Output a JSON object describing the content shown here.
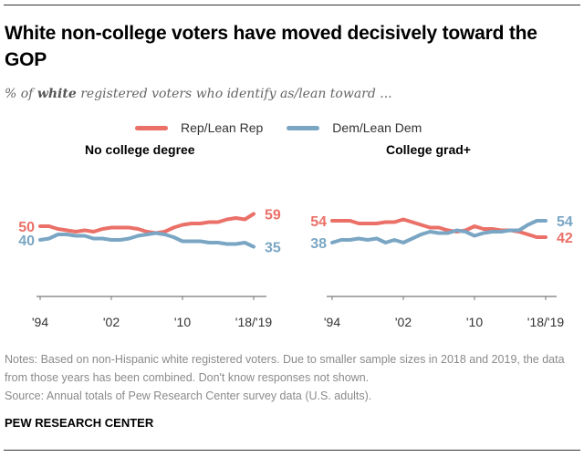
{
  "header": {
    "title": "White non-college voters have moved decisively toward the GOP",
    "subtitle_prefix": "% of ",
    "subtitle_emphasis": "white",
    "subtitle_suffix": " registered voters who identify as/lean toward ..."
  },
  "legend": [
    {
      "label": "Rep/Lean Rep",
      "color": "#ea7068"
    },
    {
      "label": "Dem/Lean Dem",
      "color": "#7aa6c4"
    }
  ],
  "panels": [
    {
      "title": "No college degree"
    },
    {
      "title": "College grad+"
    }
  ],
  "footer": {
    "notes": "Notes: Based on non-Hispanic white registered voters. Due to smaller sample sizes in 2018 and 2019, the data from those years has been combined. Don't know responses not shown.",
    "source": "Source: Annual totals of Pew Research Center survey data (U.S. adults).",
    "org": "PEW RESEARCH CENTER"
  },
  "chart_data": [
    {
      "type": "line",
      "title": "No college degree",
      "x": [
        "1994",
        "1995",
        "1996",
        "1997",
        "1998",
        "1999",
        "2000",
        "2001",
        "2002",
        "2003",
        "2004",
        "2005",
        "2006",
        "2007",
        "2008",
        "2009",
        "2010",
        "2011",
        "2012",
        "2013",
        "2014",
        "2015",
        "2016",
        "2017",
        "2018/19"
      ],
      "xticks": [
        "'94",
        "'02",
        "'10",
        "'18/'19"
      ],
      "ylim": [
        20,
        75
      ],
      "series": [
        {
          "name": "Rep/Lean Rep",
          "color": "#ea7068",
          "values": [
            50,
            50,
            48,
            47,
            46,
            47,
            46,
            48,
            49,
            49,
            49,
            48,
            46,
            45,
            46,
            49,
            51,
            52,
            52,
            53,
            53,
            55,
            56,
            55,
            59
          ],
          "start_label": "50",
          "end_label": "59"
        },
        {
          "name": "Dem/Lean Dem",
          "color": "#7aa6c4",
          "values": [
            40,
            41,
            44,
            44,
            43,
            43,
            41,
            41,
            40,
            40,
            41,
            43,
            44,
            45,
            44,
            42,
            39,
            39,
            39,
            38,
            38,
            37,
            37,
            38,
            35
          ],
          "start_label": "40",
          "end_label": "35"
        }
      ]
    },
    {
      "type": "line",
      "title": "College grad+",
      "x": [
        "1994",
        "1995",
        "1996",
        "1997",
        "1998",
        "1999",
        "2000",
        "2001",
        "2002",
        "2003",
        "2004",
        "2005",
        "2006",
        "2007",
        "2008",
        "2009",
        "2010",
        "2011",
        "2012",
        "2013",
        "2014",
        "2015",
        "2016",
        "2017",
        "2018/19"
      ],
      "xticks": [
        "'94",
        "'02",
        "'10",
        "'18/'19"
      ],
      "ylim": [
        20,
        75
      ],
      "series": [
        {
          "name": "Rep/Lean Rep",
          "color": "#ea7068",
          "values": [
            54,
            54,
            54,
            52,
            52,
            52,
            53,
            53,
            55,
            53,
            51,
            49,
            49,
            47,
            46,
            47,
            50,
            48,
            48,
            47,
            47,
            46,
            44,
            42,
            42
          ],
          "start_label": "54",
          "end_label": "42"
        },
        {
          "name": "Dem/Lean Dem",
          "color": "#7aa6c4",
          "values": [
            38,
            40,
            40,
            41,
            40,
            41,
            38,
            40,
            38,
            41,
            44,
            46,
            45,
            45,
            47,
            46,
            43,
            45,
            46,
            46,
            47,
            47,
            51,
            54,
            54
          ],
          "start_label": "38",
          "end_label": "54"
        }
      ]
    }
  ]
}
